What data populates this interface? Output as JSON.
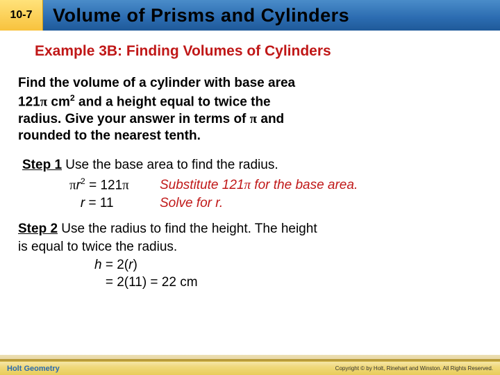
{
  "header": {
    "lesson_number": "10-7",
    "title": "Volume of Prisms and Cylinders"
  },
  "example": {
    "heading": "Example 3B: Finding Volumes of Cylinders",
    "problem_l1": "Find the volume of a cylinder with base area",
    "problem_l2_prefix": "121",
    "problem_l2_unit": " cm",
    "problem_l2_exp": "2",
    "problem_l2_rest": " and a height equal to twice the",
    "problem_l3": "radius. Give your answer in terms of ",
    "problem_l3_end": " and",
    "problem_l4": "rounded to the nearest tenth."
  },
  "step1": {
    "label": "Step 1",
    "text": "  Use the base area to find the radius.",
    "row1_lhs_r": "r",
    "row1_lhs_exp": "2",
    "row1_eq": " = 121",
    "row1_comment_a": "Substitute 121",
    "row1_comment_b": " for the base area.",
    "row2_lhs": "r",
    "row2_eq": " = 11",
    "row2_comment": "Solve for r."
  },
  "step2": {
    "label": "Step 2",
    "text1": "  Use the radius to find the height. The height",
    "text2": "is equal to twice the radius.",
    "m1_lhs": "h",
    "m1_rhs": " = 2(",
    "m1_r": "r",
    "m1_end": ")",
    "m2": "   = 2(11) = 22 cm"
  },
  "footer": {
    "left": "Holt Geometry",
    "right": "Copyright © by Holt, Rinehart and Winston. All Rights Reserved."
  }
}
